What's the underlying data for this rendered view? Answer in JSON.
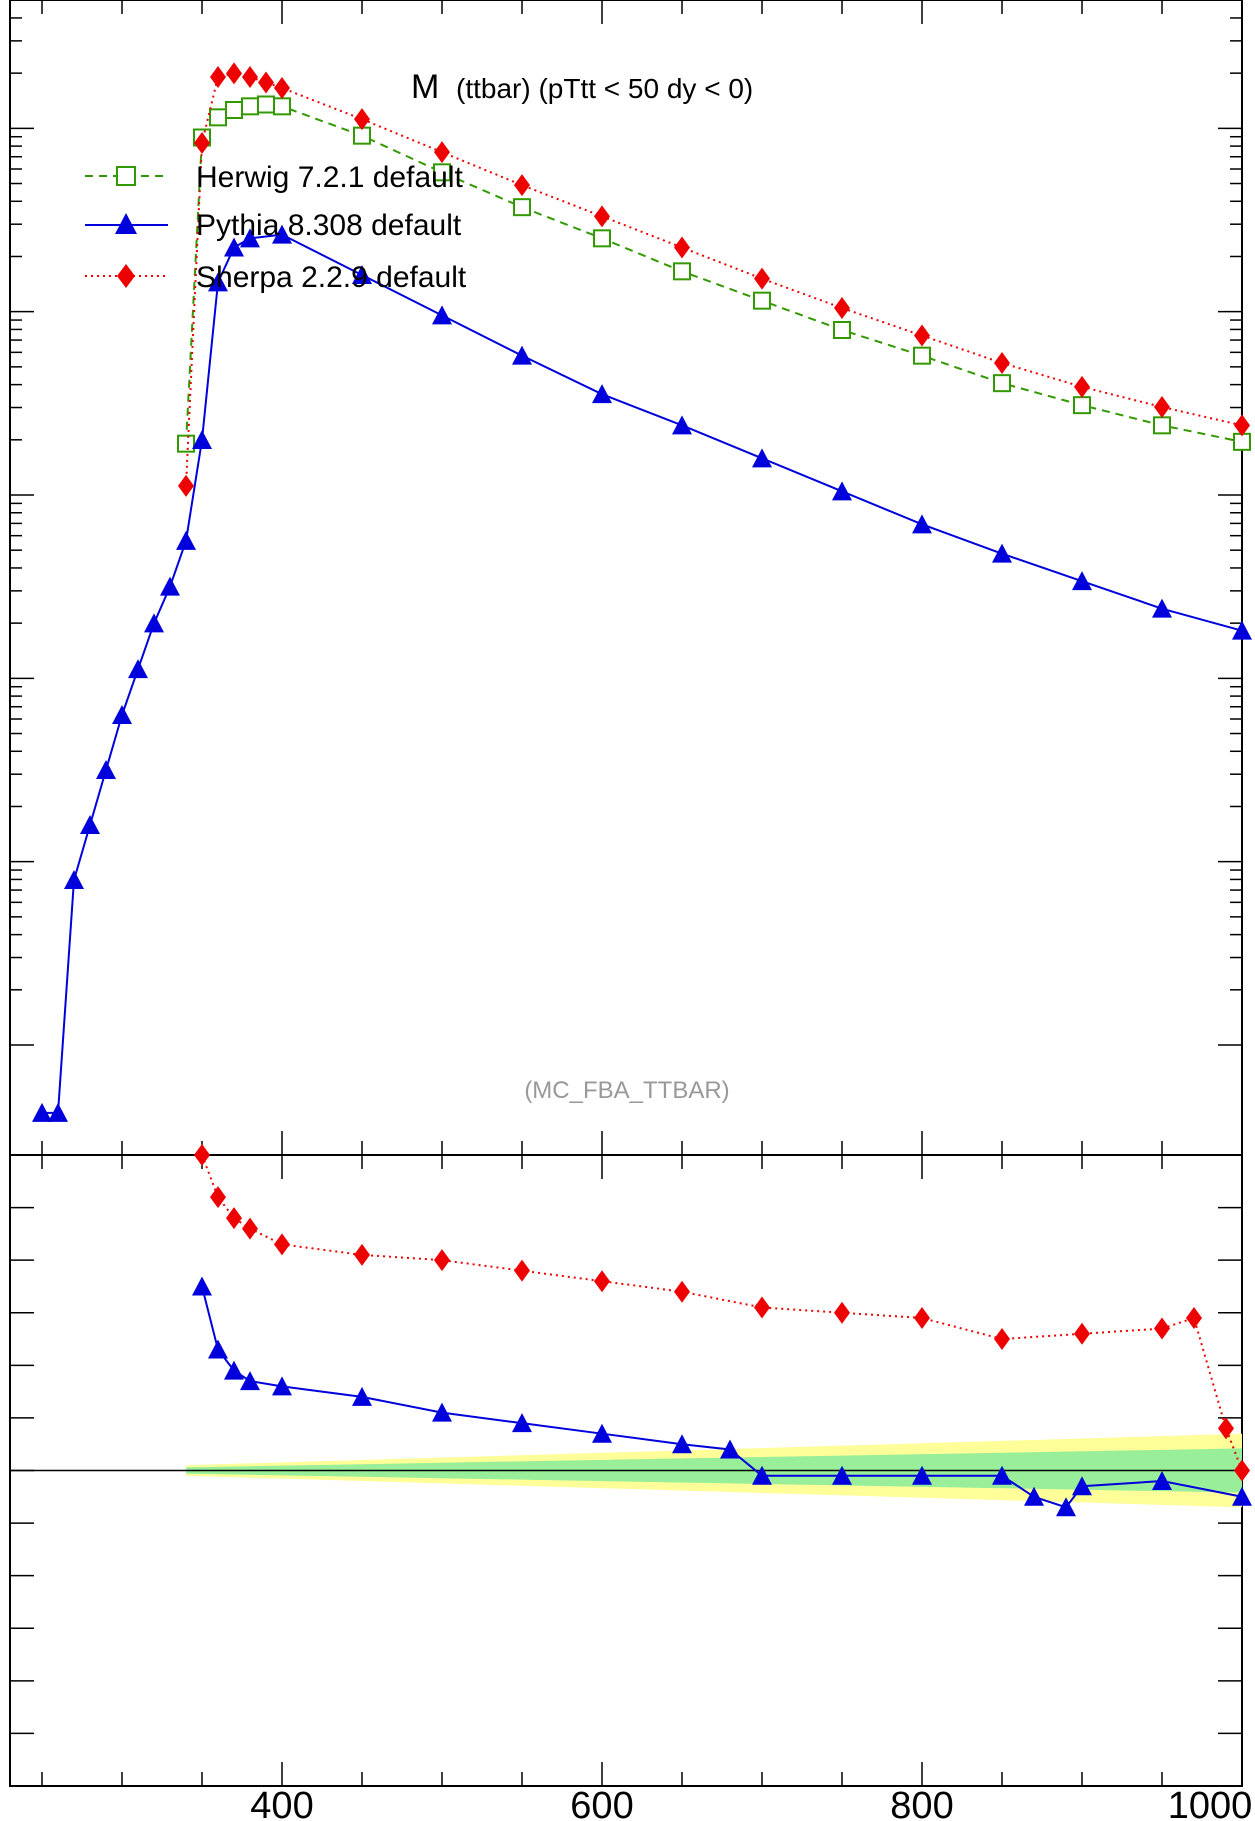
{
  "chart_data": [
    {
      "type": "line",
      "panel": "main",
      "title": "M",
      "subtitle": "(ttbar) (pTtt < 50 dy < 0)",
      "watermark": "(MC_FBA_TTBAR)",
      "xlim": [
        230,
        1000
      ],
      "log_y": true,
      "grid": false,
      "legend_position": "top-left",
      "legend": [
        {
          "label": "Herwig 7.2.1 default",
          "color": "#339900",
          "marker": "open-square",
          "line": "dashed"
        },
        {
          "label": "Pythia 8.308 default",
          "color": "#0000dd",
          "marker": "triangle",
          "line": "solid"
        },
        {
          "label": "Sherpa 2.2.9 default",
          "color": "#ee0000",
          "marker": "diamond",
          "line": "dotted"
        }
      ],
      "series": [
        {
          "name": "Herwig 7.2.1 default",
          "color": "#339900",
          "x": [
            340,
            350,
            360,
            370,
            380,
            390,
            400,
            450,
            500,
            550,
            600,
            650,
            700,
            750,
            800,
            850,
            900,
            950,
            1000
          ],
          "log_values": [
            -3.72,
            -2.05,
            -1.94,
            -1.9,
            -1.88,
            -1.87,
            -1.88,
            -2.04,
            -2.24,
            -2.43,
            -2.6,
            -2.78,
            -2.94,
            -3.1,
            -3.24,
            -3.39,
            -3.51,
            -3.62,
            -3.71
          ]
        },
        {
          "name": "Pythia 8.308 default",
          "color": "#0000dd",
          "x": [
            250,
            260,
            270,
            280,
            290,
            300,
            310,
            320,
            330,
            340,
            350,
            360,
            370,
            380,
            400,
            450,
            500,
            550,
            600,
            650,
            700,
            750,
            800,
            850,
            900,
            950,
            1000
          ],
          "log_values": [
            -7.37,
            -7.37,
            -6.1,
            -5.8,
            -5.5,
            -5.2,
            -4.95,
            -4.7,
            -4.5,
            -4.25,
            -3.7,
            -2.84,
            -2.65,
            -2.6,
            -2.58,
            -2.8,
            -3.02,
            -3.24,
            -3.45,
            -3.62,
            -3.8,
            -3.98,
            -4.16,
            -4.32,
            -4.47,
            -4.62,
            -4.74
          ]
        },
        {
          "name": "Sherpa 2.2.9 default",
          "color": "#ee0000",
          "x": [
            340,
            350,
            360,
            370,
            380,
            390,
            400,
            450,
            500,
            550,
            600,
            650,
            700,
            750,
            800,
            850,
            900,
            950,
            1000
          ],
          "log_values": [
            -3.95,
            -2.08,
            -1.72,
            -1.7,
            -1.72,
            -1.75,
            -1.78,
            -1.95,
            -2.13,
            -2.31,
            -2.48,
            -2.65,
            -2.82,
            -2.98,
            -3.13,
            -3.28,
            -3.41,
            -3.52,
            -3.62
          ]
        }
      ]
    },
    {
      "type": "line",
      "panel": "ratio",
      "xlabel": "",
      "x_ticks": [
        "400",
        "600",
        "800",
        "1000"
      ],
      "xlim": [
        230,
        1000
      ],
      "ylim": [
        0.4,
        1.6
      ],
      "reference_line": 1.0,
      "series": [
        {
          "name": "Pythia 8.308 default",
          "color": "#0000dd",
          "x": [
            350,
            360,
            370,
            380,
            400,
            450,
            500,
            550,
            600,
            650,
            680,
            700,
            750,
            800,
            850,
            870,
            890,
            900,
            950,
            1000
          ],
          "values": [
            1.35,
            1.23,
            1.19,
            1.17,
            1.16,
            1.14,
            1.11,
            1.09,
            1.07,
            1.05,
            1.04,
            0.99,
            0.99,
            0.99,
            0.99,
            0.95,
            0.93,
            0.97,
            0.98,
            0.95
          ]
        },
        {
          "name": "Sherpa 2.2.9 default",
          "color": "#ee0000",
          "x": [
            350,
            360,
            370,
            380,
            400,
            450,
            500,
            550,
            600,
            650,
            700,
            750,
            800,
            850,
            900,
            950,
            970,
            990,
            1000
          ],
          "values": [
            1.6,
            1.52,
            1.48,
            1.46,
            1.43,
            1.41,
            1.4,
            1.38,
            1.36,
            1.34,
            1.31,
            1.3,
            1.29,
            1.25,
            1.26,
            1.27,
            1.29,
            1.08,
            1.0
          ]
        }
      ],
      "uncertainty_band": {
        "colors": [
          "#ffff99",
          "#99ee99"
        ],
        "x": [
          340,
          1000
        ],
        "half_width_start": 0.01,
        "half_width_end": 0.07
      }
    }
  ]
}
